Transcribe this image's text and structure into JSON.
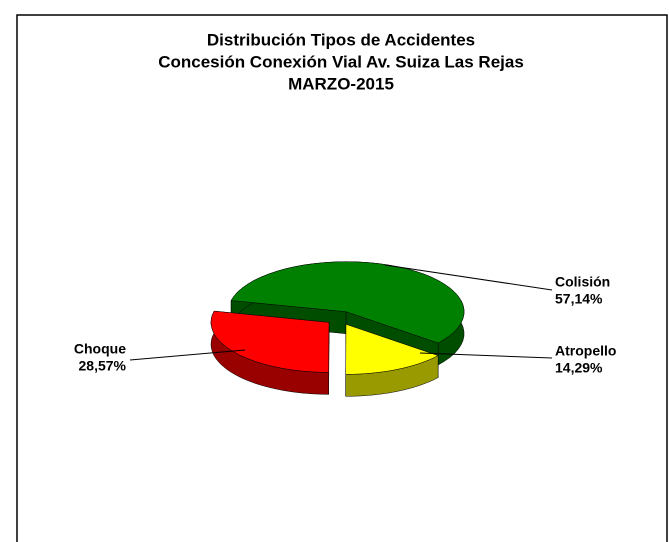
{
  "chart_data": {
    "type": "pie3d",
    "title": [
      "Distribución Tipos de Accidentes",
      "Concesión Conexión Vial Av. Suiza Las Rejas",
      "MARZO-2015"
    ],
    "categories": [
      "Colisión",
      "Atropello",
      "Choque"
    ],
    "values": [
      57.14,
      14.29,
      28.57
    ],
    "value_labels": [
      "57,14%",
      "14,29%",
      "28,57%"
    ],
    "colors": [
      "#008000",
      "#ffff00",
      "#ff0000"
    ]
  }
}
